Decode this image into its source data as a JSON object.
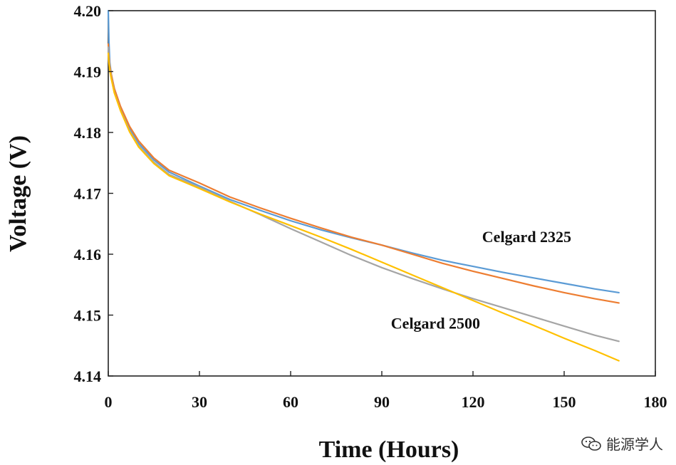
{
  "chart_data": {
    "type": "line",
    "xlabel": "Time (Hours)",
    "ylabel": "Voltage (V)",
    "xlim": [
      0,
      180
    ],
    "ylim": [
      4.14,
      4.2
    ],
    "x_ticks": [
      0,
      30,
      60,
      90,
      120,
      150,
      180
    ],
    "x_tick_labels": [
      "0",
      "30",
      "60",
      "90",
      "120",
      "150",
      "180"
    ],
    "y_ticks": [
      4.14,
      4.15,
      4.16,
      4.17,
      4.18,
      4.19,
      4.2
    ],
    "y_tick_labels": [
      "4.14",
      "4.15",
      "4.16",
      "4.17",
      "4.18",
      "4.19",
      "4.20"
    ],
    "grid": false,
    "series": [
      {
        "color": "#5b9bd5",
        "x": [
          0,
          0.2,
          0.5,
          1,
          2,
          4,
          7,
          10,
          15,
          20,
          30,
          40,
          50,
          60,
          70,
          80,
          90,
          100,
          110,
          120,
          130,
          140,
          150,
          160,
          168
        ],
        "y": [
          4.2,
          4.195,
          4.1915,
          4.1895,
          4.1872,
          4.1842,
          4.1807,
          4.1782,
          4.1755,
          4.1735,
          4.1712,
          4.169,
          4.1672,
          4.1655,
          4.164,
          4.1627,
          4.1615,
          4.1602,
          4.159,
          4.158,
          4.157,
          4.1561,
          4.1552,
          4.1543,
          4.1537
        ]
      },
      {
        "color": "#ed7d31",
        "x": [
          0,
          0.2,
          0.5,
          1,
          2,
          4,
          7,
          10,
          15,
          20,
          30,
          40,
          50,
          60,
          70,
          80,
          90,
          100,
          110,
          120,
          130,
          140,
          150,
          160,
          168
        ],
        "y": [
          4.1945,
          4.1925,
          4.191,
          4.1895,
          4.1872,
          4.1843,
          4.181,
          4.1786,
          4.1758,
          4.1738,
          4.1717,
          4.1694,
          4.1676,
          4.1659,
          4.1643,
          4.1628,
          4.1615,
          4.16,
          4.1585,
          4.1572,
          4.156,
          4.1548,
          4.1537,
          4.1527,
          4.152
        ]
      },
      {
        "color": "#a5a5a5",
        "x": [
          0,
          0.2,
          0.5,
          1,
          2,
          4,
          7,
          10,
          15,
          20,
          30,
          40,
          50,
          60,
          70,
          80,
          90,
          100,
          110,
          120,
          130,
          140,
          150,
          160,
          168
        ],
        "y": [
          4.194,
          4.192,
          4.1905,
          4.189,
          4.1866,
          4.1837,
          4.1803,
          4.1778,
          4.1751,
          4.1731,
          4.171,
          4.1687,
          4.1665,
          4.1642,
          4.162,
          4.1598,
          4.1578,
          4.156,
          4.1543,
          4.1527,
          4.1512,
          4.1497,
          4.1482,
          4.1467,
          4.1457
        ]
      },
      {
        "color": "#ffc000",
        "x": [
          0,
          0.2,
          0.5,
          1,
          2,
          4,
          7,
          10,
          15,
          20,
          30,
          40,
          50,
          60,
          70,
          80,
          90,
          100,
          110,
          120,
          130,
          140,
          150,
          160,
          168
        ],
        "y": [
          4.193,
          4.1915,
          4.1902,
          4.1888,
          4.1865,
          4.1836,
          4.1801,
          4.1776,
          4.1749,
          4.1729,
          4.1708,
          4.1686,
          4.1666,
          4.1647,
          4.1628,
          4.1608,
          4.1587,
          4.1566,
          4.1545,
          4.1524,
          4.1503,
          4.1483,
          4.1462,
          4.1442,
          4.1425
        ]
      }
    ],
    "annotations": [
      {
        "text": "Celgard 2325",
        "x": 123,
        "y": 4.162
      },
      {
        "text": "Celgard 2500",
        "x": 93,
        "y": 4.1478
      }
    ]
  },
  "watermark": {
    "text": "能源学人",
    "icon": "wechat-icon"
  }
}
